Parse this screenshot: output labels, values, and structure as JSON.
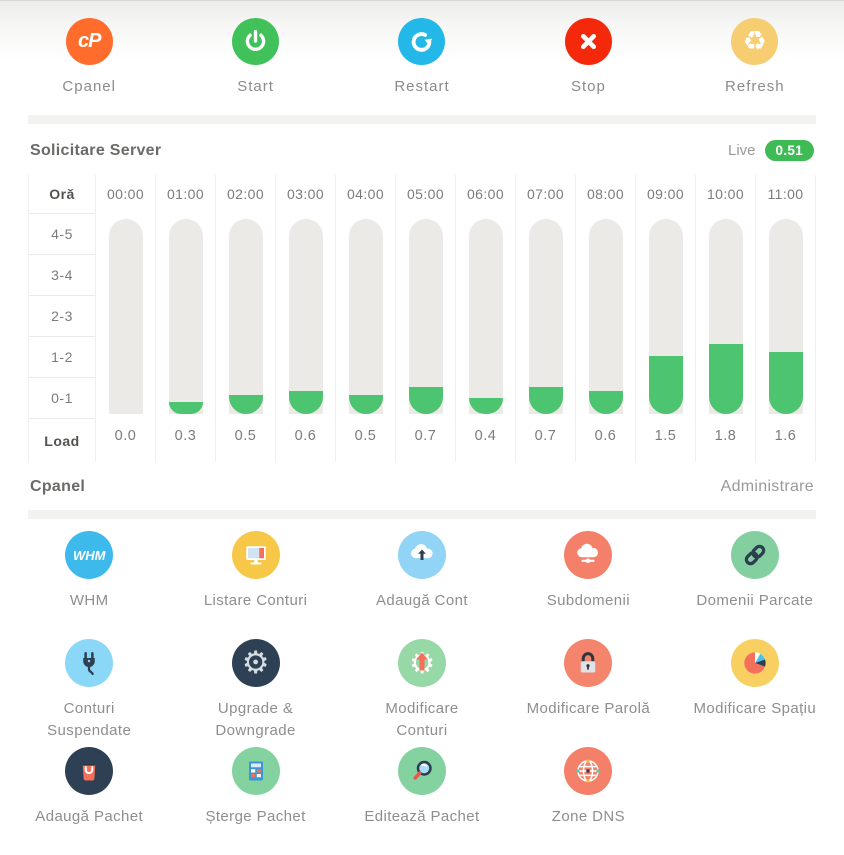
{
  "actions": [
    {
      "label": "Cpanel",
      "icon": "cpanel-logo-icon",
      "color": "#ff6c2c",
      "logo_text": "cP"
    },
    {
      "label": "Start",
      "icon": "power-icon",
      "color": "#41c159"
    },
    {
      "label": "Restart",
      "icon": "restart-arrow-icon",
      "color": "#24b8e9"
    },
    {
      "label": "Stop",
      "icon": "stop-x-icon",
      "color": "#f4290b"
    },
    {
      "label": "Refresh",
      "icon": "recycle-icon",
      "color": "#f6ce71",
      "glyph": "♻"
    }
  ],
  "server_load": {
    "title": "Solicitare Server",
    "live_label": "Live",
    "live_value": "0.51",
    "live_badge_color": "#3fbb55",
    "chart_data": {
      "type": "bar",
      "title": "Solicitare Server",
      "corner_label": "Oră",
      "footer_label": "Load",
      "row_labels": [
        "4-5",
        "3-4",
        "2-3",
        "1-2",
        "0-1"
      ],
      "categories": [
        "00:00",
        "01:00",
        "02:00",
        "03:00",
        "04:00",
        "05:00",
        "06:00",
        "07:00",
        "08:00",
        "09:00",
        "10:00",
        "11:00"
      ],
      "values": [
        0.0,
        0.3,
        0.5,
        0.6,
        0.5,
        0.7,
        0.4,
        0.7,
        0.6,
        1.5,
        1.8,
        1.6
      ],
      "value_labels": [
        "0.0",
        "0.3",
        "0.5",
        "0.6",
        "0.5",
        "0.7",
        "0.4",
        "0.7",
        "0.6",
        "1.5",
        "1.8",
        "1.6"
      ],
      "ylim": [
        0,
        5
      ],
      "bar_color": "#4dc470",
      "track_color": "#ebeae7",
      "grid": true,
      "legend": false
    }
  },
  "cpanel_section": {
    "title": "Cpanel",
    "subtitle": "Administrare",
    "items": [
      {
        "label": "WHM",
        "icon": "whm-logo-icon",
        "color": "#3dbaeb",
        "logo_text": "WHM"
      },
      {
        "label": "Listare Conturi",
        "icon": "monitor-icon",
        "color": "#f7c748"
      },
      {
        "label": "Adaugă Cont",
        "icon": "cloud-upload-icon",
        "color": "#92d4f5"
      },
      {
        "label": "Subdomenii",
        "icon": "cloud-network-icon",
        "color": "#f5806a"
      },
      {
        "label": "Domenii Parcate",
        "icon": "chain-link-icon",
        "color": "#83cfa0"
      },
      {
        "label": "Conturi\nSuspendate",
        "icon": "plug-icon",
        "color": "#8bd7f7"
      },
      {
        "label": "Upgrade &\nDowngrade",
        "icon": "gear-icon",
        "color": "#2e4154",
        "glyph": "⚙"
      },
      {
        "label": "Modificare\nConturi",
        "icon": "gear-up-arrow-icon",
        "color": "#97d8a7",
        "glyph": "⚙"
      },
      {
        "label": "Modificare Parolă",
        "icon": "padlock-icon",
        "color": "#f5846d"
      },
      {
        "label": "Modificare Spațiu",
        "icon": "pie-chart-icon",
        "color": "#f8cf61"
      },
      {
        "label": "Adaugă Pachet",
        "icon": "shopping-bag-icon",
        "color": "#2e4154"
      },
      {
        "label": "Șterge Pachet",
        "icon": "calculator-icon",
        "color": "#83d29f"
      },
      {
        "label": "Editează Pachet",
        "icon": "magnifier-icon",
        "color": "#83d29f"
      },
      {
        "label": "Zone DNS",
        "icon": "globe-icon",
        "color": "#f5806a"
      }
    ]
  }
}
